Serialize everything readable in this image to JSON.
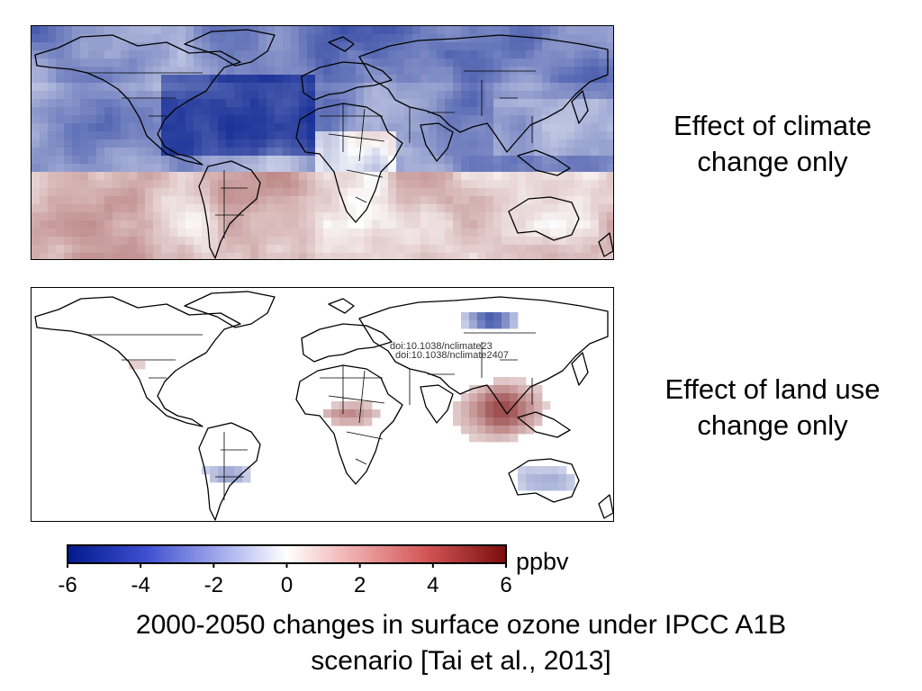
{
  "panels": [
    {
      "id": "climate",
      "label_line1": "Effect of climate",
      "label_line2": "change only"
    },
    {
      "id": "landuse",
      "label_line1": "Effect of land use",
      "label_line2": "change only",
      "watermark_line1": "doi:10.1038/nclimate23",
      "watermark_line2": "doi:10.1038/nclimate2407"
    }
  ],
  "colorbar": {
    "unit": "ppbv",
    "min": -6,
    "max": 6,
    "ticks": [
      "-6",
      "-4",
      "-2",
      "0",
      "2",
      "4",
      "6"
    ],
    "colors": {
      "min": "#001a8c",
      "mid": "#ffffff",
      "max": "#7a0d0d"
    }
  },
  "caption": {
    "line1": "2000-2050 changes in surface ozone under IPCC A1B",
    "line2": "scenario [Tai et al., 2013]"
  }
}
